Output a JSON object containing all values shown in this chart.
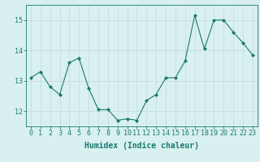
{
  "x": [
    0,
    1,
    2,
    3,
    4,
    5,
    6,
    7,
    8,
    9,
    10,
    11,
    12,
    13,
    14,
    15,
    16,
    17,
    18,
    19,
    20,
    21,
    22,
    23
  ],
  "y": [
    13.1,
    13.3,
    12.8,
    12.55,
    13.6,
    13.75,
    12.75,
    12.05,
    12.05,
    11.7,
    11.75,
    11.7,
    12.35,
    12.55,
    13.1,
    13.1,
    13.65,
    15.15,
    14.05,
    15.0,
    15.0,
    14.6,
    14.25,
    13.85
  ],
  "line_color": "#1a7a6e",
  "marker": "D",
  "marker_size": 2,
  "bg_color": "#d9f0f0",
  "grid_color": "#c8dede",
  "xlabel": "Humidex (Indice chaleur)",
  "ylim": [
    11.5,
    15.5
  ],
  "xlim": [
    -0.5,
    23.5
  ],
  "yticks": [
    12,
    13,
    14,
    15
  ],
  "xticks": [
    0,
    1,
    2,
    3,
    4,
    5,
    6,
    7,
    8,
    9,
    10,
    11,
    12,
    13,
    14,
    15,
    16,
    17,
    18,
    19,
    20,
    21,
    22,
    23
  ],
  "spine_color": "#1a7a6e",
  "tick_color": "#1a7a6e",
  "label_color": "#1a7a6e",
  "font_size": 6,
  "xlabel_fontsize": 7
}
